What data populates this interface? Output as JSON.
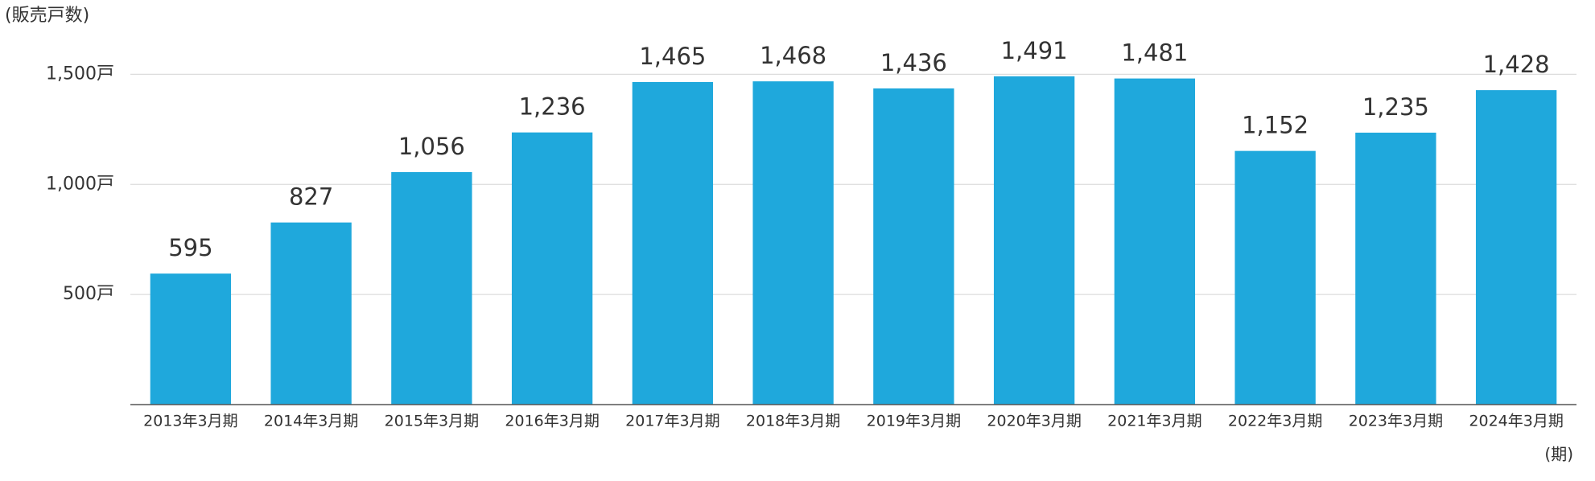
{
  "chart_data": {
    "type": "bar",
    "title": "(販売戸数)",
    "x_label": "(期)",
    "categories": [
      "2013年3月期",
      "2014年3月期",
      "2015年3月期",
      "2016年3月期",
      "2017年3月期",
      "2018年3月期",
      "2019年3月期",
      "2020年3月期",
      "2021年3月期",
      "2022年3月期",
      "2023年3月期",
      "2024年3月期"
    ],
    "values": [
      595,
      827,
      1056,
      1236,
      1465,
      1468,
      1436,
      1491,
      1481,
      1152,
      1235,
      1428
    ],
    "value_labels": [
      "595",
      "827",
      "1,056",
      "1,236",
      "1,465",
      "1,468",
      "1,436",
      "1,491",
      "1,481",
      "1,152",
      "1,235",
      "1,428"
    ],
    "color": "#1fa8dc",
    "ylim": [
      0,
      1600
    ],
    "yticks": [
      {
        "value": 500,
        "label": "500戸"
      },
      {
        "value": 1000,
        "label": "1,000戸"
      },
      {
        "value": 1500,
        "label": "1,500戸"
      }
    ],
    "grid": true
  }
}
